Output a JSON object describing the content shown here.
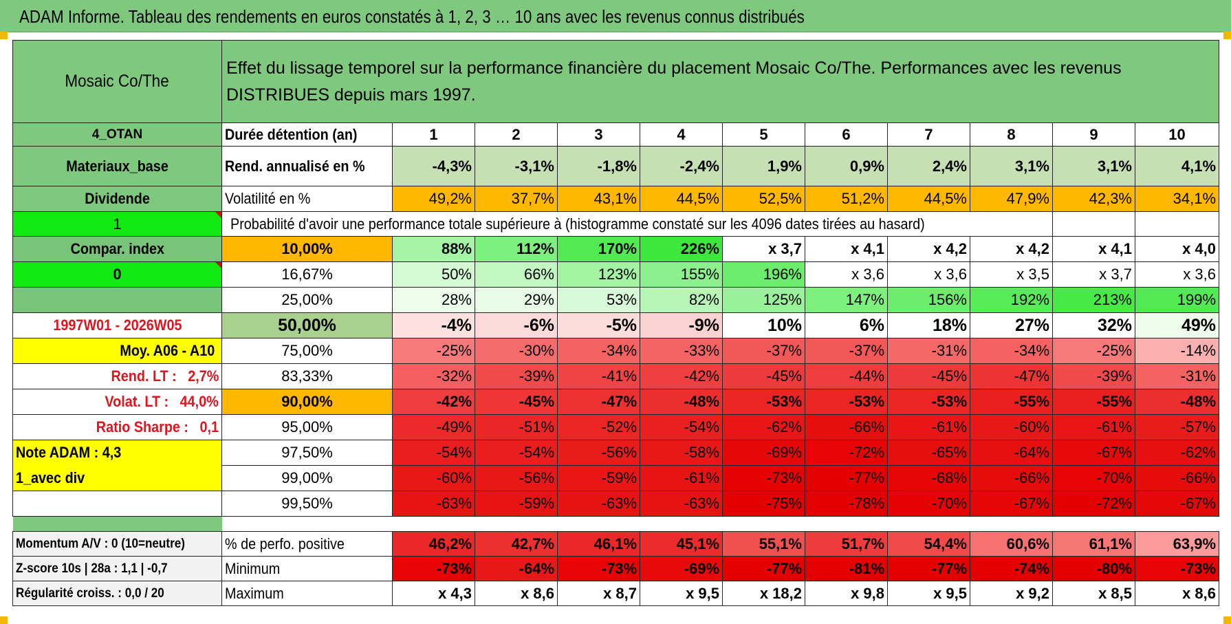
{
  "title": "ADAM Informe. Tableau des rendements en euros constatés à 1, 2, 3 … 10 ans avec les revenus connus distribués",
  "header": {
    "fund": "Mosaic Co/The",
    "description": "Effet du lissage temporel sur la performance financière du placement Mosaic Co/The. Performances avec les revenus DISTRIBUES depuis mars 1997."
  },
  "left": {
    "code": "4_OTAN",
    "sector": "Materiaux_base",
    "dividend": "Dividende",
    "flag1": "1",
    "compar": "Compar. index",
    "flag0": "0",
    "period": "1997W01 - 2026W05",
    "moy": "Moy. A06 - A10",
    "rend_lt": "Rend. LT :   2,7%",
    "volat_lt": "Volat. LT :   44,0%",
    "sharpe": "Ratio Sharpe :   0,1",
    "note": "Note ADAM : 4,3",
    "div_mode": "1_avec div",
    "momentum": "Momentum A/V : 0 (10=neutre)",
    "zscore": "Z-score 10s | 28a : 1,1 | -0,7",
    "regularite": "Régularité croiss. : 0,0 / 20"
  },
  "labels": {
    "duree": "Durée détention (an)",
    "rend": "Rend. annualisé en %",
    "vol": "Volatilité en %",
    "prob": "Probabilité d'avoir une performance totale supérieure à (histogramme constaté sur les 4096 dates tirées au hasard)",
    "pos": "% de perfo. positive",
    "min": "Minimum",
    "max": "Maximum"
  },
  "years": [
    "1",
    "2",
    "3",
    "4",
    "5",
    "6",
    "7",
    "8",
    "9",
    "10"
  ],
  "rend": [
    "-4,3%",
    "-3,1%",
    "-1,8%",
    "-2,4%",
    "1,9%",
    "0,9%",
    "2,4%",
    "3,1%",
    "3,1%",
    "4,1%"
  ],
  "vol": [
    "49,2%",
    "37,7%",
    "43,1%",
    "44,5%",
    "52,5%",
    "51,2%",
    "44,5%",
    "47,9%",
    "42,3%",
    "34,1%"
  ],
  "perc_rows": [
    {
      "p": "10,00%",
      "v": [
        "88%",
        "112%",
        "170%",
        "226%",
        "x 3,7",
        "x 4,1",
        "x 4,2",
        "x 4,2",
        "x 4,1",
        "x 4,0"
      ]
    },
    {
      "p": "16,67%",
      "v": [
        "50%",
        "66%",
        "123%",
        "155%",
        "196%",
        "x 3,6",
        "x 3,6",
        "x 3,5",
        "x 3,7",
        "x 3,6"
      ]
    },
    {
      "p": "25,00%",
      "v": [
        "28%",
        "29%",
        "53%",
        "82%",
        "125%",
        "147%",
        "156%",
        "192%",
        "213%",
        "199%"
      ]
    },
    {
      "p": "50,00%",
      "v": [
        "-4%",
        "-6%",
        "-5%",
        "-9%",
        "10%",
        "6%",
        "18%",
        "27%",
        "32%",
        "49%"
      ]
    },
    {
      "p": "75,00%",
      "v": [
        "-25%",
        "-30%",
        "-34%",
        "-33%",
        "-37%",
        "-37%",
        "-31%",
        "-34%",
        "-25%",
        "-14%"
      ]
    },
    {
      "p": "83,33%",
      "v": [
        "-32%",
        "-39%",
        "-41%",
        "-42%",
        "-45%",
        "-44%",
        "-45%",
        "-47%",
        "-39%",
        "-31%"
      ]
    },
    {
      "p": "90,00%",
      "v": [
        "-42%",
        "-45%",
        "-47%",
        "-48%",
        "-53%",
        "-53%",
        "-53%",
        "-55%",
        "-55%",
        "-48%"
      ]
    },
    {
      "p": "95,00%",
      "v": [
        "-49%",
        "-51%",
        "-52%",
        "-54%",
        "-62%",
        "-66%",
        "-61%",
        "-60%",
        "-61%",
        "-57%"
      ]
    },
    {
      "p": "97,50%",
      "v": [
        "-54%",
        "-54%",
        "-56%",
        "-58%",
        "-69%",
        "-72%",
        "-65%",
        "-64%",
        "-67%",
        "-62%"
      ]
    },
    {
      "p": "99,00%",
      "v": [
        "-60%",
        "-56%",
        "-59%",
        "-61%",
        "-73%",
        "-77%",
        "-68%",
        "-66%",
        "-70%",
        "-66%"
      ]
    },
    {
      "p": "99,50%",
      "v": [
        "-63%",
        "-59%",
        "-63%",
        "-63%",
        "-75%",
        "-78%",
        "-70%",
        "-67%",
        "-72%",
        "-67%"
      ]
    }
  ],
  "pos": [
    "46,2%",
    "42,7%",
    "46,1%",
    "45,1%",
    "55,1%",
    "51,7%",
    "54,4%",
    "60,6%",
    "61,1%",
    "63,9%"
  ],
  "min": [
    "-73%",
    "-64%",
    "-73%",
    "-69%",
    "-77%",
    "-81%",
    "-77%",
    "-74%",
    "-80%",
    "-73%"
  ],
  "max": [
    "x 4,3",
    "x 8,6",
    "x 8,7",
    "x 9,5",
    "x 18,2",
    "x 9,8",
    "x 9,5",
    "x 9,2",
    "x 8,5",
    "x 8,6"
  ],
  "colors": {
    "rend": [
      "#c6e0b4",
      "#c6e0b4",
      "#c6e0b4",
      "#c6e0b4",
      "#c6e0b4",
      "#c6e0b4",
      "#c6e0b4",
      "#c6e0b4",
      "#c6e0b4",
      "#c6e0b4"
    ],
    "vol": [
      "#ffb700",
      "#ffb700",
      "#ffb700",
      "#ffb700",
      "#ffb700",
      "#ffb700",
      "#ffb700",
      "#ffb700",
      "#ffb700",
      "#ffb700"
    ],
    "perc": [
      [
        "#a6f5a6",
        "#7df07d",
        "#52ea52",
        "#3ce83c",
        "#ffffff",
        "#ffffff",
        "#ffffff",
        "#ffffff",
        "#ffffff",
        "#ffffff"
      ],
      [
        "#d4fad4",
        "#c2f7c2",
        "#a2f3a2",
        "#8cf08c",
        "#6ded6d",
        "#ffffff",
        "#ffffff",
        "#ffffff",
        "#ffffff",
        "#ffffff"
      ],
      [
        "#ecfdec",
        "#e8fce8",
        "#d8fad8",
        "#b8f6b8",
        "#98f298",
        "#7ef07e",
        "#6ced6c",
        "#58eb58",
        "#46e946",
        "#52ea52"
      ],
      [
        "#fde0e0",
        "#fddada",
        "#fddcdc",
        "#fbd2d2",
        "#ffffff",
        "#ffffff",
        "#ffffff",
        "#ffffff",
        "#ffffff",
        "#ecfdec"
      ],
      [
        "#f77a7a",
        "#f66c6c",
        "#f46262",
        "#f56464",
        "#f35858",
        "#f35858",
        "#f56868",
        "#f46262",
        "#f77a7a",
        "#fbb0b0"
      ],
      [
        "#f46060",
        "#f14a4a",
        "#f04444",
        "#ef4040",
        "#ee3a3a",
        "#ef3c3c",
        "#ee3a3a",
        "#ed3434",
        "#f14a4a",
        "#f46262"
      ],
      [
        "#ef3c3c",
        "#ee3636",
        "#ed3030",
        "#ec2e2e",
        "#eb2424",
        "#eb2424",
        "#eb2424",
        "#ea2020",
        "#ea2020",
        "#ec2e2e"
      ],
      [
        "#ec2a2a",
        "#eb2626",
        "#eb2424",
        "#ea2020",
        "#e81616",
        "#e70e0e",
        "#e81616",
        "#e81818",
        "#e81616",
        "#e91c1c"
      ],
      [
        "#ea1e1e",
        "#ea1e1e",
        "#e91c1c",
        "#e81818",
        "#e60808",
        "#e60404",
        "#e70e0e",
        "#e71010",
        "#e60a0a",
        "#e71010"
      ],
      [
        "#e81818",
        "#e81818",
        "#e81616",
        "#e71414",
        "#e60202",
        "#e50000",
        "#e60606",
        "#e70c0c",
        "#e60404",
        "#e70c0c"
      ],
      [
        "#e71414",
        "#e71414",
        "#e71212",
        "#e71212",
        "#e50000",
        "#e50000",
        "#e60202",
        "#e60606",
        "#e50000",
        "#e60808"
      ]
    ],
    "pos": [
      "#eb2828",
      "#ec3030",
      "#eb2828",
      "#ec2c2c",
      "#f15050",
      "#ee3c3c",
      "#f04a4a",
      "#f67272",
      "#f67676",
      "#fb9a9a"
    ],
    "min": [
      "#e60404",
      "#e81818",
      "#e60404",
      "#e60a0a",
      "#e50000",
      "#e50000",
      "#e50000",
      "#e50000",
      "#e50000",
      "#e60404"
    ],
    "max": [
      "#ffffff",
      "#ffffff",
      "#ffffff",
      "#ffffff",
      "#ffffff",
      "#ffffff",
      "#ffffff",
      "#ffffff",
      "#ffffff",
      "#ffffff"
    ]
  }
}
